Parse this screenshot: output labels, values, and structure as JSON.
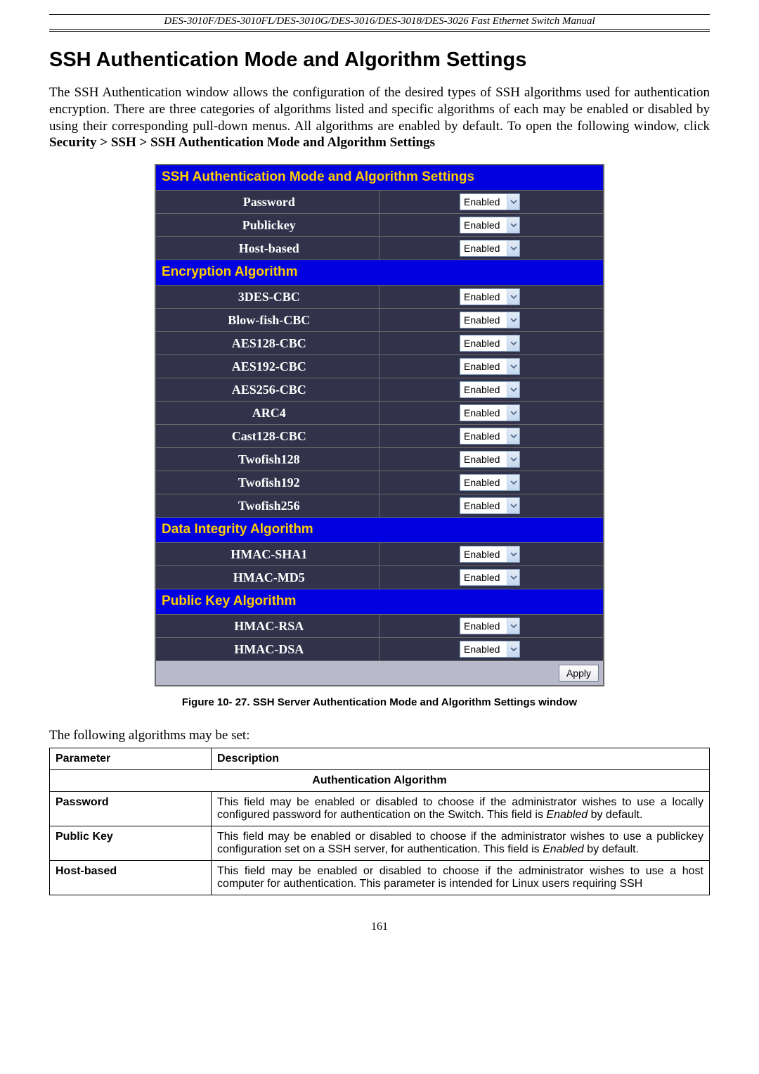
{
  "header": {
    "running_head": "DES-3010F/DES-3010FL/DES-3010G/DES-3016/DES-3018/DES-3026 Fast Ethernet Switch Manual"
  },
  "page_title": "SSH Authentication Mode and Algorithm Settings",
  "body_paragraph": {
    "part1": "The SSH Authentication window allows the configuration of the desired types of SSH algorithms used for authentication encryption. There are three categories of algorithms listed and specific algorithms of each may be enabled or disabled by using their corresponding pull-down menus. All algorithms are enabled by default. To open the following window, click ",
    "breadcrumb": "Security > SSH > SSH Authentication Mode and Algorithm Settings"
  },
  "settings_panel": {
    "colors": {
      "section_bg": "#0000e0",
      "section_text": "#ffcd00",
      "row_bg": "#32334a",
      "row_text": "#ffffff",
      "apply_row_bg": "#b8bacb",
      "border": "#6a6a6a",
      "dropdown_border": "#7e9db9",
      "dropdown_arrow_bg_top": "#e4ecf7",
      "dropdown_arrow_bg_bottom": "#c5d8ef",
      "dropdown_arrow_stroke": "#4d6185"
    },
    "sections": [
      {
        "title": "SSH Authentication Mode and Algorithm Settings",
        "rows": [
          {
            "label": "Password",
            "value": "Enabled"
          },
          {
            "label": "Publickey",
            "value": "Enabled"
          },
          {
            "label": "Host-based",
            "value": "Enabled"
          }
        ]
      },
      {
        "title": "Encryption Algorithm",
        "rows": [
          {
            "label": "3DES-CBC",
            "value": "Enabled"
          },
          {
            "label": "Blow-fish-CBC",
            "value": "Enabled"
          },
          {
            "label": "AES128-CBC",
            "value": "Enabled"
          },
          {
            "label": "AES192-CBC",
            "value": "Enabled"
          },
          {
            "label": "AES256-CBC",
            "value": "Enabled"
          },
          {
            "label": "ARC4",
            "value": "Enabled"
          },
          {
            "label": "Cast128-CBC",
            "value": "Enabled"
          },
          {
            "label": "Twofish128",
            "value": "Enabled"
          },
          {
            "label": "Twofish192",
            "value": "Enabled"
          },
          {
            "label": "Twofish256",
            "value": "Enabled"
          }
        ]
      },
      {
        "title": "Data Integrity Algorithm",
        "rows": [
          {
            "label": "HMAC-SHA1",
            "value": "Enabled"
          },
          {
            "label": "HMAC-MD5",
            "value": "Enabled"
          }
        ]
      },
      {
        "title": "Public Key Algorithm",
        "rows": [
          {
            "label": "HMAC-RSA",
            "value": "Enabled"
          },
          {
            "label": "HMAC-DSA",
            "value": "Enabled"
          }
        ]
      }
    ],
    "apply_label": "Apply"
  },
  "figure_caption": "Figure 10- 27. SSH Server Authentication Mode and Algorithm Settings window",
  "lead_in": "The following algorithms may be set:",
  "param_table": {
    "headers": {
      "parameter": "Parameter",
      "description": "Description"
    },
    "section_title": "Authentication Algorithm",
    "rows": [
      {
        "name": "Password",
        "desc_pre": "This field may be enabled or disabled to choose if the administrator wishes to use a locally configured password for authentication on the Switch. This field is ",
        "desc_em": "Enabled",
        "desc_post": " by default."
      },
      {
        "name": "Public Key",
        "desc_pre": "This field may be enabled or disabled to choose if the administrator wishes to use a publickey configuration set on a SSH server, for authentication. This field is ",
        "desc_em": "Enabled",
        "desc_post": " by default."
      },
      {
        "name": "Host-based",
        "desc_pre": "This field may be enabled or disabled to choose if the administrator wishes to use a host computer for authentication. This parameter is intended for Linux users requiring SSH",
        "desc_em": "",
        "desc_post": ""
      }
    ]
  },
  "page_number": "161"
}
